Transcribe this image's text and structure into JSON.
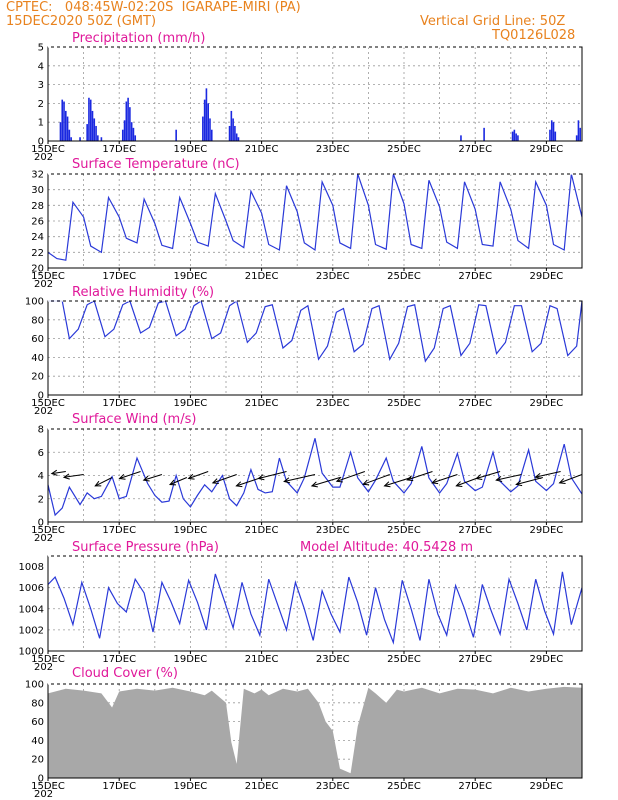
{
  "header": {
    "line1": "CPTEC:   048:45W-02:20S  IGARAPE-MIRI (PA)",
    "line2": "15DEC2020 50Z (GMT)",
    "grid_note": "Vertical Grid Line: 50Z",
    "model_code": "TQ0126L028"
  },
  "x_axis": {
    "tick_labels": [
      "15DEC",
      "17DEC",
      "19DEC",
      "21DEC",
      "23DEC",
      "25DEC",
      "27DEC",
      "29DEC"
    ],
    "start_fragment": "202",
    "days": 15
  },
  "colors": {
    "line": "#2a39d8",
    "bar": "#1a28e0",
    "cloud": "#a8a8a8",
    "title": "#e0189a",
    "header": "#e8821e",
    "wind_arrow": "#000000",
    "grid": "#9a9a9a"
  },
  "chart_data": [
    {
      "type": "bar",
      "title": "Precipitation (mm/h)",
      "ylim": [
        0,
        5
      ],
      "yticks": [
        0,
        1,
        2,
        3,
        4,
        5
      ],
      "ytick_labels": [
        "0",
        "1",
        "2",
        "3",
        "4",
        "5"
      ],
      "x": [
        0.35,
        0.4,
        0.45,
        0.5,
        0.55,
        0.6,
        0.65,
        0.9,
        1.1,
        1.15,
        1.2,
        1.25,
        1.3,
        1.35,
        1.4,
        1.5,
        2.1,
        2.15,
        2.2,
        2.25,
        2.3,
        2.35,
        2.4,
        2.45,
        3.6,
        4.35,
        4.4,
        4.45,
        4.5,
        4.55,
        4.6,
        5.1,
        5.15,
        5.2,
        5.25,
        5.3,
        5.35,
        11.6,
        12.25,
        13.05,
        13.1,
        13.15,
        13.2,
        14.1,
        14.15,
        14.2,
        14.25,
        14.85,
        14.9,
        14.95
      ],
      "values": [
        1.0,
        2.2,
        2.1,
        1.6,
        1.3,
        0.6,
        0.2,
        0.2,
        0.9,
        2.3,
        2.2,
        1.6,
        1.2,
        0.8,
        0.3,
        0.2,
        0.6,
        1.1,
        2.1,
        2.3,
        1.8,
        1.0,
        0.7,
        0.3,
        0.6,
        1.3,
        2.2,
        2.8,
        2.0,
        1.2,
        0.6,
        0.8,
        1.6,
        1.2,
        0.8,
        0.4,
        0.2,
        0.3,
        0.7,
        0.5,
        0.6,
        0.4,
        0.3,
        0.6,
        1.1,
        1.0,
        0.5,
        0.3,
        1.1,
        0.7
      ]
    },
    {
      "type": "line",
      "title": "Surface Temperature (nC)",
      "ylim": [
        20,
        32
      ],
      "yticks": [
        20,
        22,
        24,
        26,
        28,
        30,
        32
      ],
      "ytick_labels": [
        "20",
        "22",
        "24",
        "26",
        "28",
        "30",
        "32"
      ],
      "x": [
        0,
        0.25,
        0.5,
        0.7,
        1.0,
        1.2,
        1.5,
        1.7,
        2.0,
        2.2,
        2.5,
        2.7,
        3.0,
        3.2,
        3.5,
        3.7,
        4.0,
        4.2,
        4.5,
        4.7,
        5.0,
        5.2,
        5.5,
        5.7,
        6.0,
        6.2,
        6.5,
        6.7,
        7.0,
        7.2,
        7.5,
        7.7,
        8.0,
        8.2,
        8.5,
        8.7,
        9.0,
        9.2,
        9.5,
        9.7,
        10.0,
        10.2,
        10.5,
        10.7,
        11.0,
        11.2,
        11.5,
        11.7,
        12.0,
        12.2,
        12.5,
        12.7,
        13.0,
        13.2,
        13.5,
        13.7,
        14.0,
        14.2,
        14.5,
        14.7,
        15.0
      ],
      "values": [
        22.0,
        21.2,
        21.0,
        28.4,
        26.5,
        22.8,
        22.0,
        29.0,
        26.5,
        23.8,
        23.2,
        28.8,
        25.7,
        22.9,
        22.5,
        29.0,
        25.7,
        23.3,
        22.8,
        29.5,
        26.0,
        23.5,
        22.6,
        29.8,
        27.0,
        23.0,
        22.3,
        30.5,
        27.2,
        23.2,
        22.3,
        31.0,
        28.0,
        23.2,
        22.5,
        32.0,
        28.0,
        23.0,
        22.4,
        32.0,
        28.2,
        23.0,
        22.5,
        31.2,
        27.8,
        23.3,
        22.5,
        31.0,
        27.5,
        23.0,
        22.8,
        31.0,
        27.5,
        23.5,
        22.5,
        31.0,
        28.0,
        23.0,
        22.3,
        32.0,
        26.5
      ]
    },
    {
      "type": "line",
      "title": "Relative Humidity (%)",
      "ylim": [
        0,
        100
      ],
      "yticks": [
        0,
        20,
        40,
        60,
        80,
        100
      ],
      "ytick_labels": [
        "0",
        "20",
        "40",
        "60",
        "80",
        "100"
      ],
      "x": [
        0,
        0.15,
        0.4,
        0.6,
        0.85,
        1.1,
        1.3,
        1.6,
        1.85,
        2.1,
        2.3,
        2.6,
        2.85,
        3.1,
        3.3,
        3.6,
        3.85,
        4.1,
        4.3,
        4.6,
        4.85,
        5.1,
        5.3,
        5.6,
        5.85,
        6.1,
        6.3,
        6.6,
        6.85,
        7.1,
        7.3,
        7.6,
        7.85,
        8.1,
        8.3,
        8.6,
        8.85,
        9.1,
        9.3,
        9.6,
        9.85,
        10.1,
        10.3,
        10.6,
        10.85,
        11.1,
        11.3,
        11.6,
        11.85,
        12.1,
        12.3,
        12.6,
        12.85,
        13.1,
        13.3,
        13.6,
        13.85,
        14.1,
        14.3,
        14.6,
        14.85,
        15.0
      ],
      "values": [
        100,
        100,
        100,
        60,
        70,
        96,
        100,
        62,
        70,
        96,
        100,
        66,
        72,
        98,
        100,
        63,
        70,
        95,
        100,
        60,
        66,
        95,
        100,
        56,
        66,
        94,
        96,
        50,
        58,
        90,
        95,
        38,
        52,
        88,
        92,
        46,
        54,
        92,
        95,
        38,
        55,
        94,
        96,
        36,
        50,
        92,
        95,
        42,
        55,
        96,
        95,
        44,
        56,
        95,
        95,
        46,
        55,
        95,
        92,
        42,
        52,
        100
      ]
    },
    {
      "type": "line",
      "title": "Surface Wind (m/s)",
      "ylim": [
        0,
        8
      ],
      "yticks": [
        0,
        2,
        4,
        6,
        8
      ],
      "ytick_labels": [
        "0",
        "2",
        "4",
        "6",
        "8"
      ],
      "x": [
        0,
        0.2,
        0.4,
        0.6,
        0.9,
        1.1,
        1.3,
        1.5,
        1.8,
        2.0,
        2.2,
        2.5,
        2.8,
        3.0,
        3.2,
        3.4,
        3.6,
        3.8,
        4.0,
        4.2,
        4.4,
        4.6,
        4.9,
        5.1,
        5.3,
        5.5,
        5.7,
        5.9,
        6.1,
        6.3,
        6.5,
        6.7,
        7.0,
        7.2,
        7.5,
        7.7,
        8.0,
        8.2,
        8.5,
        8.7,
        9.0,
        9.2,
        9.5,
        9.7,
        10.0,
        10.2,
        10.5,
        10.7,
        11.0,
        11.2,
        11.5,
        11.7,
        12.0,
        12.2,
        12.5,
        12.7,
        13.0,
        13.2,
        13.5,
        13.7,
        14.0,
        14.2,
        14.5,
        14.7,
        15.0
      ],
      "values": [
        3.2,
        0.6,
        1.2,
        3.0,
        1.5,
        2.5,
        2.0,
        2.2,
        3.9,
        2.0,
        2.2,
        5.5,
        3.3,
        2.3,
        1.7,
        1.8,
        4.0,
        2.0,
        1.3,
        2.3,
        3.2,
        2.6,
        4.0,
        2.0,
        1.4,
        2.5,
        4.5,
        2.8,
        2.5,
        2.6,
        5.5,
        3.5,
        2.5,
        3.8,
        7.2,
        4.2,
        3.0,
        3.0,
        6.0,
        3.8,
        2.6,
        3.6,
        5.5,
        3.5,
        2.5,
        3.3,
        6.5,
        3.8,
        2.5,
        3.3,
        5.9,
        3.5,
        2.7,
        3.0,
        6.0,
        3.5,
        2.6,
        3.1,
        6.2,
        3.5,
        2.7,
        3.3,
        6.7,
        3.8,
        2.4
      ],
      "arrows": {
        "x": [
          0.5,
          1.0,
          1.8,
          2.6,
          3.2,
          3.9,
          4.5,
          5.3,
          6.0,
          6.7,
          7.5,
          8.2,
          8.9,
          9.6,
          10.2,
          10.8,
          11.5,
          12.1,
          12.7,
          13.3,
          13.9,
          14.4,
          15.0
        ],
        "u": [
          1,
          1.4,
          1.2,
          1.5,
          1.3,
          1.2,
          1.4,
          1.7,
          1.8,
          2.0,
          2.2,
          2.0,
          2.0,
          1.9,
          1.9,
          1.8,
          1.8,
          1.6,
          1.7,
          1.8,
          1.9,
          1.8,
          1.6
        ],
        "v": [
          0.15,
          0.2,
          0.6,
          0.5,
          0.4,
          0.5,
          0.5,
          0.6,
          0.6,
          0.5,
          0.5,
          0.6,
          0.7,
          0.7,
          0.6,
          0.6,
          0.6,
          0.6,
          0.5,
          0.4,
          0.5,
          0.4,
          0.6
        ]
      }
    },
    {
      "type": "line",
      "title": "Surface Pressure (hPa)",
      "annotation": "Model Altitude: 40.5428 m",
      "ylim": [
        1000,
        1009
      ],
      "yticks": [
        1000,
        1002,
        1004,
        1006,
        1008
      ],
      "ytick_labels": [
        "1000",
        "1002",
        "1004",
        "1006",
        "1008"
      ],
      "x": [
        0,
        0.2,
        0.45,
        0.7,
        0.95,
        1.2,
        1.45,
        1.7,
        1.95,
        2.2,
        2.45,
        2.7,
        2.95,
        3.2,
        3.45,
        3.7,
        3.95,
        4.2,
        4.45,
        4.7,
        4.95,
        5.2,
        5.45,
        5.7,
        5.95,
        6.2,
        6.45,
        6.7,
        6.95,
        7.2,
        7.45,
        7.7,
        7.95,
        8.2,
        8.45,
        8.7,
        8.95,
        9.2,
        9.45,
        9.7,
        9.95,
        10.2,
        10.45,
        10.7,
        10.95,
        11.2,
        11.45,
        11.7,
        11.95,
        12.2,
        12.45,
        12.7,
        12.95,
        13.2,
        13.45,
        13.7,
        13.95,
        14.2,
        14.45,
        14.7,
        15.0
      ],
      "values": [
        1006.3,
        1007.0,
        1005.0,
        1002.5,
        1006.5,
        1004.0,
        1001.2,
        1006.0,
        1004.5,
        1003.7,
        1006.8,
        1005.5,
        1001.8,
        1006.5,
        1004.7,
        1002.6,
        1006.7,
        1004.6,
        1002.0,
        1007.3,
        1004.8,
        1002.2,
        1006.5,
        1003.5,
        1001.5,
        1006.8,
        1004.4,
        1002.0,
        1006.5,
        1004.0,
        1001.0,
        1005.7,
        1003.5,
        1001.8,
        1007.0,
        1004.6,
        1001.5,
        1006.0,
        1003.0,
        1000.8,
        1006.7,
        1004.0,
        1001.0,
        1006.8,
        1003.5,
        1001.5,
        1006.2,
        1004.0,
        1001.3,
        1006.3,
        1003.8,
        1001.6,
        1006.8,
        1004.5,
        1002.0,
        1006.8,
        1003.8,
        1001.6,
        1007.5,
        1002.5,
        1006.0
      ]
    },
    {
      "type": "area",
      "title": "Cloud Cover (%)",
      "ylim": [
        0,
        100
      ],
      "yticks": [
        0,
        20,
        40,
        60,
        80,
        100
      ],
      "ytick_labels": [
        "0",
        "20",
        "40",
        "60",
        "80",
        "100"
      ],
      "x": [
        0,
        0.5,
        1.0,
        1.5,
        1.8,
        2.0,
        2.5,
        3.0,
        3.5,
        4.0,
        4.4,
        4.6,
        5.0,
        5.15,
        5.3,
        5.5,
        5.8,
        6.0,
        6.2,
        6.6,
        7.0,
        7.3,
        7.6,
        7.8,
        8.0,
        8.2,
        8.5,
        8.7,
        9.0,
        9.2,
        9.5,
        9.8,
        10.0,
        10.5,
        11.0,
        11.5,
        12.0,
        12.5,
        13.0,
        13.5,
        14.0,
        14.5,
        15.0
      ],
      "values": [
        90,
        95,
        93,
        90,
        75,
        92,
        95,
        93,
        96,
        92,
        88,
        93,
        80,
        38,
        15,
        95,
        90,
        94,
        88,
        95,
        92,
        95,
        80,
        60,
        50,
        10,
        5,
        55,
        96,
        90,
        80,
        94,
        92,
        96,
        90,
        95,
        94,
        90,
        96,
        92,
        95,
        97,
        96
      ]
    }
  ]
}
